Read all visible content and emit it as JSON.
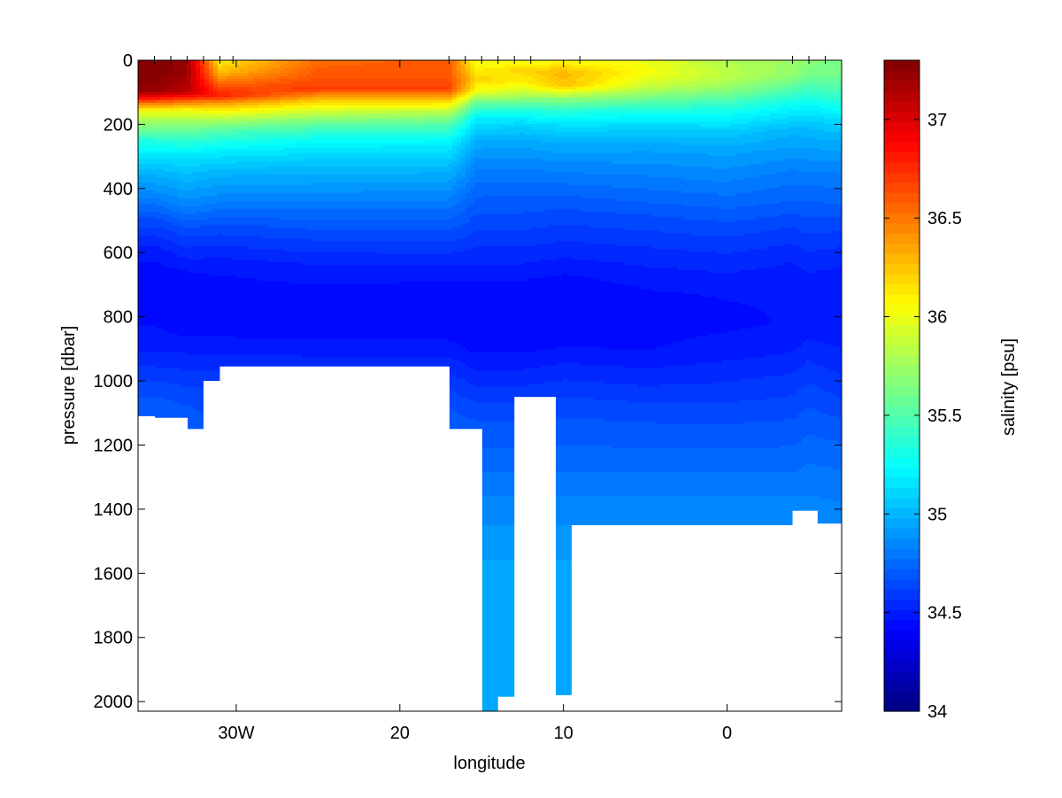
{
  "chart_data": {
    "type": "heatmap",
    "subtype": "filled-contour section",
    "title": "",
    "xlabel": "longitude",
    "ylabel": "pressure [dbar]",
    "colorbar_label": "salinity [psu]",
    "colormap": "jet",
    "x_range": [
      -36,
      7
    ],
    "x_direction": "west-to-east (W negative)",
    "y_range": [
      0,
      2030
    ],
    "y_direction": "reversed (0 at top)",
    "x_ticks": [
      {
        "value": -30,
        "label": "30W"
      },
      {
        "value": -20,
        "label": "20"
      },
      {
        "value": -10,
        "label": "10"
      },
      {
        "value": 0,
        "label": "0"
      }
    ],
    "y_ticks": [
      {
        "value": 0,
        "label": "0"
      },
      {
        "value": 200,
        "label": "200"
      },
      {
        "value": 400,
        "label": "400"
      },
      {
        "value": 600,
        "label": "600"
      },
      {
        "value": 800,
        "label": "800"
      },
      {
        "value": 1000,
        "label": "1000"
      },
      {
        "value": 1200,
        "label": "1200"
      },
      {
        "value": 1400,
        "label": "1400"
      },
      {
        "value": 1600,
        "label": "1600"
      },
      {
        "value": 1800,
        "label": "1800"
      },
      {
        "value": 2000,
        "label": "2000"
      }
    ],
    "colorbar_range": [
      34,
      37.3
    ],
    "colorbar_ticks": [
      {
        "value": 34,
        "label": "34"
      },
      {
        "value": 34.5,
        "label": "34.5"
      },
      {
        "value": 35,
        "label": "35"
      },
      {
        "value": 35.5,
        "label": "35.5"
      },
      {
        "value": 36,
        "label": "36"
      },
      {
        "value": 36.5,
        "label": "36.5"
      },
      {
        "value": 37,
        "label": "37"
      }
    ],
    "station_longitudes": [
      -35,
      -34,
      -33,
      -32,
      -31,
      -30.2,
      -17,
      -16,
      -15,
      -14,
      -13,
      -12,
      -9,
      4,
      5,
      6
    ],
    "bottom_profile": [
      {
        "from": -36,
        "to": -35,
        "depth": 1110
      },
      {
        "from": -35,
        "to": -33,
        "depth": 1115
      },
      {
        "from": -33,
        "to": -32,
        "depth": 1150
      },
      {
        "from": -32,
        "to": -31,
        "depth": 1000
      },
      {
        "from": -31,
        "to": -17,
        "depth": 955
      },
      {
        "from": -17,
        "to": -15,
        "depth": 1150
      },
      {
        "from": -15,
        "to": -14,
        "depth": 2030
      },
      {
        "from": -14,
        "to": -13,
        "depth": 1985
      },
      {
        "from": -13,
        "to": -10.5,
        "depth": 1050
      },
      {
        "from": -10.5,
        "to": -9.5,
        "depth": 1980
      },
      {
        "from": -9.5,
        "to": 4,
        "depth": 1450
      },
      {
        "from": 4,
        "to": 5.5,
        "depth": 1405
      },
      {
        "from": 5.5,
        "to": 7,
        "depth": 1445
      }
    ],
    "salinity_profiles": [
      {
        "lon": -35,
        "levels": [
          [
            0,
            37.3
          ],
          [
            40,
            37.3
          ],
          [
            100,
            37.2
          ],
          [
            130,
            36.6
          ],
          [
            160,
            36.0
          ],
          [
            200,
            35.7
          ],
          [
            250,
            35.35
          ],
          [
            300,
            35.15
          ],
          [
            350,
            35.0
          ],
          [
            420,
            34.85
          ],
          [
            500,
            34.65
          ],
          [
            600,
            34.48
          ],
          [
            700,
            34.42
          ],
          [
            800,
            34.45
          ],
          [
            900,
            34.5
          ],
          [
            1000,
            34.62
          ],
          [
            1100,
            34.72
          ]
        ]
      },
      {
        "lon": -33,
        "levels": [
          [
            0,
            37.2
          ],
          [
            40,
            37.2
          ],
          [
            100,
            37.1
          ],
          [
            130,
            36.5
          ],
          [
            160,
            36.0
          ],
          [
            200,
            35.7
          ],
          [
            250,
            35.4
          ],
          [
            300,
            35.15
          ],
          [
            370,
            35.0
          ],
          [
            450,
            34.85
          ],
          [
            530,
            34.65
          ],
          [
            650,
            34.47
          ],
          [
            750,
            34.42
          ],
          [
            850,
            34.45
          ],
          [
            950,
            34.55
          ],
          [
            1050,
            34.65
          ],
          [
            1150,
            34.72
          ]
        ]
      },
      {
        "lon": -31,
        "levels": [
          [
            0,
            36.1
          ],
          [
            40,
            36.3
          ],
          [
            80,
            36.6
          ],
          [
            110,
            36.8
          ],
          [
            140,
            36.3
          ],
          [
            180,
            35.85
          ],
          [
            220,
            35.5
          ],
          [
            280,
            35.2
          ],
          [
            350,
            35.0
          ],
          [
            430,
            34.85
          ],
          [
            520,
            34.65
          ],
          [
            640,
            34.48
          ],
          [
            750,
            34.42
          ],
          [
            850,
            34.45
          ],
          [
            950,
            34.55
          ],
          [
            1050,
            34.65
          ]
        ]
      },
      {
        "lon": -25,
        "levels": [
          [
            0,
            36.55
          ],
          [
            40,
            36.6
          ],
          [
            90,
            36.7
          ],
          [
            120,
            36.3
          ],
          [
            160,
            35.9
          ],
          [
            200,
            35.55
          ],
          [
            250,
            35.25
          ],
          [
            320,
            35.05
          ],
          [
            400,
            34.9
          ],
          [
            480,
            34.75
          ],
          [
            560,
            34.62
          ],
          [
            650,
            34.5
          ],
          [
            760,
            34.42
          ],
          [
            860,
            34.45
          ],
          [
            960,
            34.55
          ]
        ]
      },
      {
        "lon": -17,
        "levels": [
          [
            0,
            36.6
          ],
          [
            40,
            36.6
          ],
          [
            90,
            36.7
          ],
          [
            120,
            36.3
          ],
          [
            160,
            35.85
          ],
          [
            200,
            35.5
          ],
          [
            260,
            35.2
          ],
          [
            340,
            35.0
          ],
          [
            420,
            34.85
          ],
          [
            500,
            34.72
          ],
          [
            580,
            34.6
          ],
          [
            660,
            34.48
          ],
          [
            760,
            34.42
          ],
          [
            860,
            34.45
          ],
          [
            960,
            34.55
          ],
          [
            1060,
            34.65
          ],
          [
            1150,
            34.72
          ]
        ]
      },
      {
        "lon": -15.3,
        "levels": [
          [
            0,
            36.0
          ],
          [
            30,
            36.1
          ],
          [
            60,
            36.2
          ],
          [
            100,
            36.0
          ],
          [
            140,
            35.5
          ],
          [
            180,
            35.2
          ],
          [
            240,
            35.0
          ],
          [
            320,
            34.85
          ],
          [
            400,
            34.75
          ],
          [
            500,
            34.65
          ],
          [
            600,
            34.55
          ],
          [
            700,
            34.45
          ],
          [
            800,
            34.42
          ],
          [
            900,
            34.45
          ],
          [
            1000,
            34.55
          ],
          [
            1100,
            34.65
          ],
          [
            1250,
            34.75
          ],
          [
            1400,
            34.85
          ],
          [
            1600,
            34.95
          ],
          [
            1800,
            34.97
          ],
          [
            2030,
            34.97
          ]
        ]
      },
      {
        "lon": -12.5,
        "levels": [
          [
            0,
            36.0
          ],
          [
            30,
            36.2
          ],
          [
            70,
            36.1
          ],
          [
            110,
            35.8
          ],
          [
            150,
            35.4
          ],
          [
            200,
            35.1
          ],
          [
            260,
            34.95
          ],
          [
            340,
            34.82
          ],
          [
            420,
            34.72
          ],
          [
            500,
            34.65
          ],
          [
            600,
            34.55
          ],
          [
            700,
            34.45
          ],
          [
            800,
            34.42
          ],
          [
            900,
            34.45
          ],
          [
            1000,
            34.55
          ],
          [
            1100,
            34.65
          ],
          [
            1250,
            34.75
          ],
          [
            1400,
            34.85
          ],
          [
            1600,
            34.95
          ],
          [
            2000,
            34.97
          ]
        ]
      },
      {
        "lon": -10,
        "levels": [
          [
            0,
            36.05
          ],
          [
            40,
            36.3
          ],
          [
            80,
            36.25
          ],
          [
            120,
            35.7
          ],
          [
            160,
            35.35
          ],
          [
            200,
            35.15
          ],
          [
            250,
            35.0
          ],
          [
            320,
            34.87
          ],
          [
            400,
            34.75
          ],
          [
            480,
            34.65
          ],
          [
            580,
            34.55
          ],
          [
            680,
            34.45
          ],
          [
            780,
            34.42
          ],
          [
            880,
            34.45
          ],
          [
            980,
            34.55
          ],
          [
            1080,
            34.65
          ],
          [
            1250,
            34.75
          ],
          [
            1400,
            34.85
          ],
          [
            1600,
            34.95
          ],
          [
            2000,
            34.97
          ]
        ]
      },
      {
        "lon": -5,
        "levels": [
          [
            0,
            36.0
          ],
          [
            40,
            36.05
          ],
          [
            80,
            35.9
          ],
          [
            120,
            35.6
          ],
          [
            160,
            35.3
          ],
          [
            210,
            35.1
          ],
          [
            270,
            34.95
          ],
          [
            340,
            34.85
          ],
          [
            420,
            34.75
          ],
          [
            500,
            34.65
          ],
          [
            600,
            34.55
          ],
          [
            700,
            34.47
          ],
          [
            800,
            34.43
          ],
          [
            900,
            34.46
          ],
          [
            1000,
            34.55
          ],
          [
            1100,
            34.65
          ],
          [
            1250,
            34.75
          ],
          [
            1400,
            34.85
          ],
          [
            1500,
            34.9
          ]
        ]
      },
      {
        "lon": 0,
        "levels": [
          [
            0,
            35.8
          ],
          [
            50,
            35.85
          ],
          [
            90,
            35.7
          ],
          [
            130,
            35.45
          ],
          [
            170,
            35.25
          ],
          [
            220,
            35.08
          ],
          [
            280,
            34.95
          ],
          [
            360,
            34.85
          ],
          [
            440,
            34.75
          ],
          [
            520,
            34.65
          ],
          [
            620,
            34.55
          ],
          [
            720,
            34.47
          ],
          [
            820,
            34.45
          ],
          [
            920,
            34.5
          ],
          [
            1020,
            34.58
          ],
          [
            1120,
            34.66
          ],
          [
            1250,
            34.75
          ],
          [
            1400,
            34.85
          ],
          [
            1500,
            34.9
          ]
        ]
      },
      {
        "lon": 4,
        "levels": [
          [
            0,
            35.75
          ],
          [
            50,
            35.7
          ],
          [
            90,
            35.5
          ],
          [
            130,
            35.3
          ],
          [
            170,
            35.15
          ],
          [
            220,
            35.0
          ],
          [
            290,
            34.9
          ],
          [
            360,
            34.8
          ],
          [
            440,
            34.72
          ],
          [
            520,
            34.62
          ],
          [
            620,
            34.52
          ],
          [
            720,
            34.47
          ],
          [
            820,
            34.47
          ],
          [
            920,
            34.52
          ],
          [
            1020,
            34.6
          ],
          [
            1120,
            34.67
          ],
          [
            1250,
            34.75
          ],
          [
            1400,
            34.85
          ]
        ]
      },
      {
        "lon": 5,
        "levels": [
          [
            0,
            35.7
          ],
          [
            50,
            35.6
          ],
          [
            100,
            35.4
          ],
          [
            150,
            35.2
          ],
          [
            200,
            35.05
          ],
          [
            260,
            34.95
          ],
          [
            330,
            34.85
          ],
          [
            410,
            34.75
          ],
          [
            490,
            34.67
          ],
          [
            580,
            34.58
          ],
          [
            680,
            34.5
          ],
          [
            780,
            34.48
          ],
          [
            880,
            34.52
          ],
          [
            980,
            34.6
          ],
          [
            1080,
            34.67
          ],
          [
            1200,
            34.74
          ],
          [
            1400,
            34.85
          ]
        ]
      },
      {
        "lon": 7,
        "levels": [
          [
            0,
            35.6
          ],
          [
            50,
            35.6
          ],
          [
            90,
            35.5
          ],
          [
            140,
            35.3
          ],
          [
            190,
            35.12
          ],
          [
            240,
            35.0
          ],
          [
            300,
            34.9
          ],
          [
            370,
            34.8
          ],
          [
            450,
            34.72
          ],
          [
            530,
            34.62
          ],
          [
            630,
            34.52
          ],
          [
            730,
            34.48
          ],
          [
            830,
            34.48
          ],
          [
            930,
            34.53
          ],
          [
            1030,
            34.6
          ],
          [
            1130,
            34.68
          ],
          [
            1250,
            34.76
          ],
          [
            1450,
            34.86
          ]
        ]
      }
    ]
  }
}
